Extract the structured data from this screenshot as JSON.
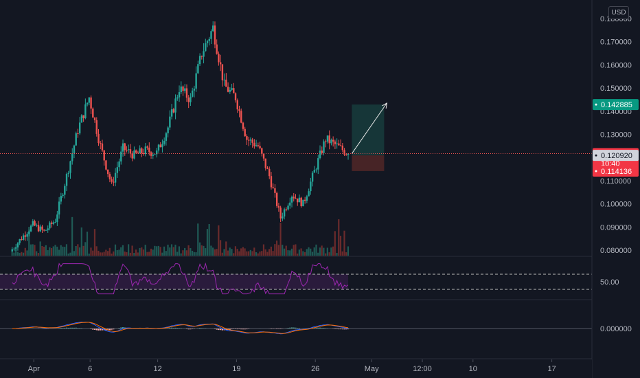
{
  "currency_badge": "USD",
  "colors": {
    "background": "#131722",
    "up": "#26a69a",
    "down": "#ef5350",
    "rsi_line": "#9c27b0",
    "rsi_band_fill": "#3b1e4f",
    "macd_line": "#2962ff",
    "signal_line": "#ff6d00",
    "profit_zone": "#16383a",
    "loss_zone": "#4a2527",
    "target_tag": "#089981",
    "stop_tag": "#f23645",
    "last_price_tag": "#f23645",
    "ref_price_tag": "#363a45"
  },
  "chart_data": [
    {
      "type": "candlestick",
      "title": "",
      "y_scale": "linear",
      "ylim": [
        0.0775,
        0.18
      ],
      "y_ticks": [
        "0.080000",
        "0.090000",
        "0.100000",
        "0.110000",
        "0.120000",
        "0.130000",
        "0.140000",
        "0.150000",
        "0.160000",
        "0.170000",
        "0.180000"
      ],
      "x_ticks": [
        "Apr",
        "6",
        "12",
        "19",
        "26",
        "May",
        "12:00",
        "10",
        "17"
      ],
      "waypoints": [
        {
          "x": "Mar 30",
          "y": 0.0795
        },
        {
          "x": "Apr 1",
          "y": 0.091
        },
        {
          "x": "Apr 2",
          "y": 0.088
        },
        {
          "x": "Apr 3",
          "y": 0.093
        },
        {
          "x": "Apr 4",
          "y": 0.112
        },
        {
          "x": "Apr 5",
          "y": 0.132
        },
        {
          "x": "Apr 6",
          "y": 0.146
        },
        {
          "x": "Apr 7",
          "y": 0.125
        },
        {
          "x": "Apr 8",
          "y": 0.108
        },
        {
          "x": "Apr 9",
          "y": 0.124
        },
        {
          "x": "Apr 10",
          "y": 0.121
        },
        {
          "x": "Apr 11",
          "y": 0.123
        },
        {
          "x": "Apr 12",
          "y": 0.122
        },
        {
          "x": "Apr 13",
          "y": 0.133
        },
        {
          "x": "Apr 14",
          "y": 0.15
        },
        {
          "x": "Apr 15",
          "y": 0.145
        },
        {
          "x": "Apr 16",
          "y": 0.165
        },
        {
          "x": "Apr 17",
          "y": 0.176
        },
        {
          "x": "Apr 18",
          "y": 0.151
        },
        {
          "x": "Apr 19",
          "y": 0.146
        },
        {
          "x": "Apr 20",
          "y": 0.128
        },
        {
          "x": "Apr 21",
          "y": 0.125
        },
        {
          "x": "Apr 22",
          "y": 0.112
        },
        {
          "x": "Apr 23",
          "y": 0.094
        },
        {
          "x": "Apr 24",
          "y": 0.104
        },
        {
          "x": "Apr 25",
          "y": 0.1
        },
        {
          "x": "Apr 26",
          "y": 0.114
        },
        {
          "x": "Apr 27",
          "y": 0.128
        },
        {
          "x": "Apr 28",
          "y": 0.125
        },
        {
          "x": "Apr 29",
          "y": 0.1217
        }
      ],
      "volume_relative": "low bars along the bottom of the price pane, spikes near Apr 1, Apr 5-6, Apr 16-18, Apr 23 and Apr 28",
      "annotations": {
        "long_position": {
          "entry": 0.12092,
          "target": 0.142885,
          "stop": 0.114136,
          "start": "Apr 29",
          "end": "May 1 12:00",
          "arrow_from": 0.1217,
          "arrow_to": 0.1435
        },
        "last_price": {
          "value": "0.121695",
          "countdown": "10:40"
        },
        "ref_price": "0.120920",
        "target_price": "0.142885",
        "stop_price": "0.114136",
        "gridlines": false
      }
    },
    {
      "type": "line",
      "title": "",
      "series": [
        {
          "name": "",
          "values_description": "oscillates roughly between 40 and 70 around 50"
        }
      ],
      "ylim": [
        30,
        80
      ],
      "bands": [
        40,
        60
      ],
      "y_ticks": [
        "50.00"
      ]
    },
    {
      "type": "line",
      "title": "",
      "series": [
        {
          "name": "",
          "description": "MACD line"
        },
        {
          "name": "",
          "description": "signal line"
        }
      ],
      "histogram": true,
      "y_ticks": [
        "0.000000"
      ]
    }
  ]
}
